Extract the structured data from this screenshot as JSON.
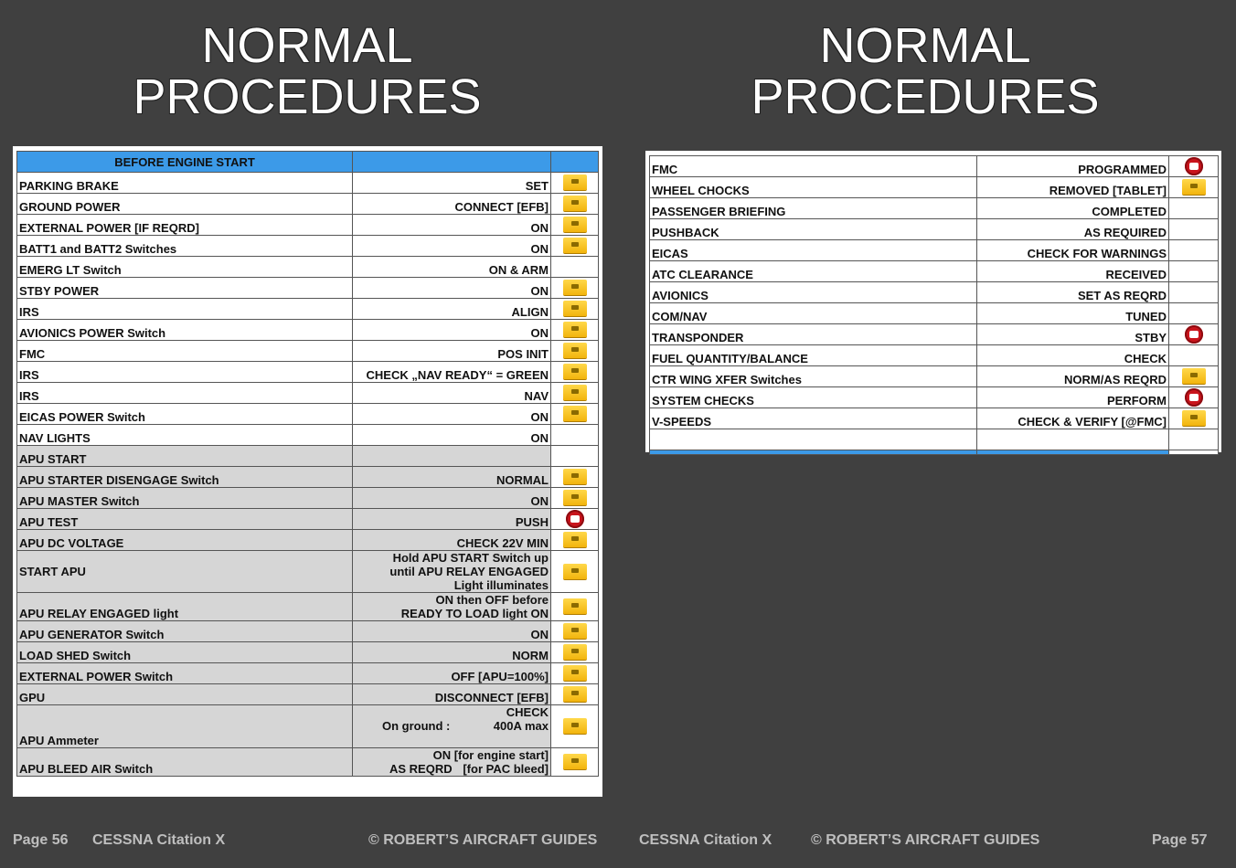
{
  "left_page": {
    "title_line1": "NORMAL",
    "title_line2": "PROCEDURES",
    "section_header": "BEFORE ENGINE START",
    "rows": [
      {
        "item": "PARKING BRAKE",
        "action": "SET",
        "btn": "photo"
      },
      {
        "item": "GROUND POWER",
        "action": "CONNECT [EFB]",
        "btn": "photo"
      },
      {
        "item": "EXTERNAL POWER [IF REQRD]",
        "action": "ON",
        "btn": "photo"
      },
      {
        "item": "BATT1 and BATT2 Switches",
        "action": "ON",
        "btn": "photo"
      },
      {
        "item": "EMERG LT Switch",
        "action": "ON & ARM",
        "btn": ""
      },
      {
        "item": "STBY POWER",
        "action": "ON",
        "btn": "photo"
      },
      {
        "item": "IRS",
        "action": "ALIGN",
        "btn": "photo"
      },
      {
        "item": "AVIONICS POWER Switch",
        "action": "ON",
        "btn": "photo"
      },
      {
        "item": "FMC",
        "action": "POS INIT",
        "btn": "photo"
      },
      {
        "item": "IRS",
        "action": "CHECK „NAV READY“ = GREEN",
        "btn": "photo"
      },
      {
        "item": "IRS",
        "action": "NAV",
        "btn": "photo"
      },
      {
        "item": "EICAS POWER Switch",
        "action": "ON",
        "btn": "photo"
      },
      {
        "item": "NAV LIGHTS",
        "action": "ON",
        "btn": ""
      }
    ],
    "apu_header": "APU START",
    "apu_rows": [
      {
        "item": "APU STARTER DISENGAGE Switch",
        "action": "NORMAL",
        "btn": "photo"
      },
      {
        "item": "APU MASTER Switch",
        "action": "ON",
        "btn": "photo"
      },
      {
        "item": "APU TEST",
        "action": "PUSH",
        "btn": "video"
      },
      {
        "item": "APU DC VOLTAGE",
        "action": "CHECK 22V MIN",
        "btn": "photo"
      }
    ],
    "start_apu": {
      "item": "START APU",
      "line1": "Hold APU START Switch up",
      "line2": "until APU RELAY ENGAGED",
      "line3": "Light illuminates"
    },
    "relay": {
      "item": "APU RELAY ENGAGED light",
      "line1": "ON then OFF before",
      "line2": "READY TO LOAD light ON"
    },
    "apu_rows2": [
      {
        "item": "APU GENERATOR Switch",
        "action": "ON",
        "btn": "photo"
      },
      {
        "item": "LOAD SHED Switch",
        "action": "NORM",
        "btn": "photo"
      },
      {
        "item": "EXTERNAL POWER Switch",
        "action": "OFF [APU=100%]",
        "btn": "photo"
      },
      {
        "item": "GPU",
        "action": "DISCONNECT [EFB]",
        "btn": "photo"
      }
    ],
    "ammeter": {
      "item": "APU Ammeter",
      "line1": "CHECK",
      "ground_label": "On ground :",
      "ground_value": "400A max"
    },
    "bleed": {
      "item": "APU BLEED AIR Switch",
      "line1": "ON  [for engine start]",
      "line2_a": "AS REQRD",
      "line2_b": "[for PAC bleed]"
    }
  },
  "right_page": {
    "title_line1": "NORMAL",
    "title_line2": "PROCEDURES",
    "rows": [
      {
        "item": "FMC",
        "action": "PROGRAMMED",
        "btn": "video"
      },
      {
        "item": "WHEEL CHOCKS",
        "action": "REMOVED [TABLET]",
        "btn": "photo"
      },
      {
        "item": "PASSENGER BRIEFING",
        "action": "COMPLETED",
        "btn": ""
      },
      {
        "item": "PUSHBACK",
        "action": "AS REQUIRED",
        "btn": ""
      },
      {
        "item": "EICAS",
        "action": "CHECK FOR WARNINGS",
        "btn": ""
      },
      {
        "item": "ATC CLEARANCE",
        "action": "RECEIVED",
        "btn": ""
      },
      {
        "item": "AVIONICS",
        "action": "SET AS REQRD",
        "btn": ""
      },
      {
        "item": "COM/NAV",
        "action": "TUNED",
        "btn": ""
      },
      {
        "item": "TRANSPONDER",
        "action": "STBY",
        "btn": "video"
      },
      {
        "item": "FUEL QUANTITY/BALANCE",
        "action": "CHECK",
        "btn": ""
      },
      {
        "item": "CTR WING XFER Switches",
        "action": "NORM/AS REQRD",
        "btn": "photo"
      },
      {
        "item": "SYSTEM CHECKS",
        "action": "PERFORM",
        "btn": "video"
      },
      {
        "item": "V-SPEEDS",
        "action": "CHECK & VERIFY [@FMC]",
        "btn": "photo"
      }
    ]
  },
  "footer": {
    "left_page": "Page 56",
    "left_model": "CESSNA Citation X",
    "left_copyright": "© ROBERT’S AIRCRAFT GUIDES",
    "right_model": "CESSNA Citation X",
    "right_copyright": "© ROBERT’S AIRCRAFT GUIDES",
    "right_page": "Page 57"
  }
}
